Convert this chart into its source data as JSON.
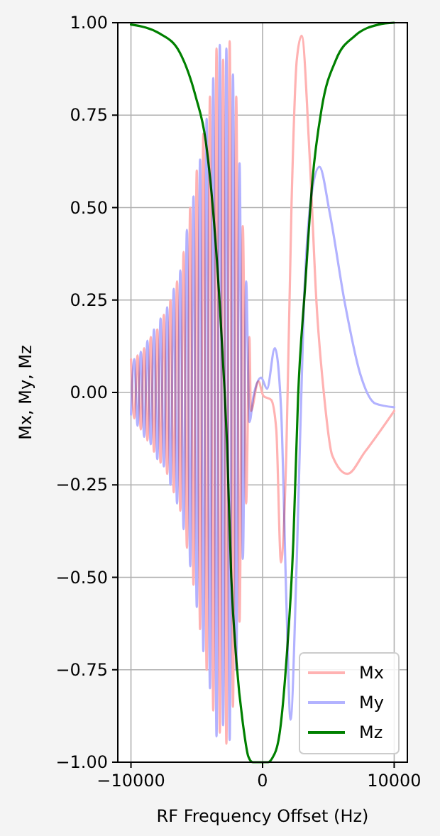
{
  "chart_data": {
    "type": "line",
    "xlabel": "RF Frequency Offset (Hz)",
    "ylabel": "Mx, My, Mz",
    "xlim": [
      -11000,
      11000
    ],
    "ylim": [
      -1,
      1
    ],
    "xticks": [
      -10000,
      0,
      10000
    ],
    "yticks": [
      {
        "value": -1,
        "label": "−1.00"
      },
      {
        "value": -0.75,
        "label": "−0.75"
      },
      {
        "value": -0.5,
        "label": "−0.50"
      },
      {
        "value": -0.25,
        "label": "−0.25"
      },
      {
        "value": 0,
        "label": "0.00"
      },
      {
        "value": 0.25,
        "label": "0.25"
      },
      {
        "value": 0.5,
        "label": "0.50"
      },
      {
        "value": 0.75,
        "label": "0.75"
      },
      {
        "value": 1,
        "label": "1.00"
      }
    ],
    "grid": true,
    "legend": "bottom right",
    "series": [
      {
        "name": "Mx",
        "color": "#ffb2b2",
        "x": [
          -10000,
          -9750,
          -9500,
          -9250,
          -9000,
          -8750,
          -8500,
          -8250,
          -8000,
          -7750,
          -7500,
          -7250,
          -7000,
          -6750,
          -6500,
          -6250,
          -6000,
          -5750,
          -5500,
          -5250,
          -5000,
          -4750,
          -4500,
          -4250,
          -4000,
          -3750,
          -3500,
          -3250,
          -3000,
          -2750,
          -2500,
          -2250,
          -2000,
          -1750,
          -1500,
          -1250,
          -1000,
          -890,
          -320,
          70,
          650,
          1040,
          1400,
          1800,
          2200,
          2600,
          2970,
          3560,
          4100,
          4650,
          5290,
          6440,
          7790,
          10000
        ],
        "values": [
          0.09,
          -0.07,
          0.1,
          -0.1,
          0.12,
          -0.13,
          0.15,
          -0.16,
          0.17,
          -0.19,
          0.21,
          -0.22,
          0.25,
          -0.27,
          0.3,
          -0.32,
          0.38,
          -0.42,
          0.5,
          -0.52,
          0.6,
          -0.64,
          0.7,
          -0.75,
          0.8,
          -0.86,
          0.93,
          -0.92,
          0.9,
          -0.95,
          0.95,
          -0.85,
          0.8,
          -0.62,
          0.45,
          -0.3,
          0.15,
          -0.05,
          0.03,
          -0.01,
          -0.02,
          -0.1,
          -0.46,
          -0.17,
          0.51,
          0.9,
          0.965,
          0.65,
          0.24,
          0,
          -0.17,
          -0.22,
          -0.16,
          -0.05
        ]
      },
      {
        "name": "My",
        "color": "#b2b2ff",
        "x": [
          -10000,
          -9750,
          -9500,
          -9250,
          -9000,
          -8750,
          -8500,
          -8250,
          -8000,
          -7750,
          -7500,
          -7250,
          -7000,
          -6750,
          -6500,
          -6250,
          -6000,
          -5750,
          -5500,
          -5250,
          -5000,
          -4750,
          -4500,
          -4250,
          -4000,
          -3750,
          -3500,
          -3250,
          -3000,
          -2750,
          -2500,
          -2250,
          -2000,
          -1750,
          -1500,
          -1250,
          -1000,
          -690,
          -110,
          340,
          930,
          1400,
          1820,
          2120,
          2600,
          3140,
          3740,
          4320,
          5080,
          6260,
          7420,
          8570,
          10000
        ],
        "values": [
          -0.06,
          0.09,
          -0.09,
          0.11,
          -0.12,
          0.14,
          -0.14,
          0.17,
          -0.18,
          0.2,
          -0.2,
          0.23,
          -0.25,
          0.28,
          -0.3,
          0.33,
          -0.37,
          0.44,
          -0.47,
          0.53,
          -0.58,
          0.63,
          -0.7,
          0.74,
          -0.8,
          0.85,
          -0.93,
          0.94,
          -0.9,
          0.93,
          -0.94,
          0.86,
          -0.75,
          0.62,
          -0.45,
          0.3,
          -0.08,
          -0.01,
          0.04,
          0.01,
          0.12,
          -0.04,
          -0.58,
          -0.885,
          -0.45,
          0.24,
          0.54,
          0.61,
          0.49,
          0.24,
          0.05,
          -0.03,
          -0.04
        ]
      },
      {
        "name": "Mz",
        "color": "#008000",
        "x": [
          -10000,
          -7780,
          -6300,
          -5080,
          -4320,
          -3780,
          -3240,
          -2880,
          -2700,
          -2380,
          -1980,
          -1440,
          -1080,
          -750,
          400,
          720,
          1260,
          1800,
          2340,
          2700,
          3240,
          3780,
          4500,
          5580,
          7030,
          8830,
          10000
        ],
        "values": [
          0.995,
          0.97,
          0.92,
          0.8,
          0.68,
          0.5,
          0.23,
          0,
          -0.14,
          -0.5,
          -0.73,
          -0.91,
          -0.985,
          -1,
          -1,
          -0.99,
          -0.93,
          -0.73,
          -0.4,
          -0.01,
          0.29,
          0.57,
          0.77,
          0.9,
          0.965,
          0.995,
          1
        ]
      }
    ]
  }
}
